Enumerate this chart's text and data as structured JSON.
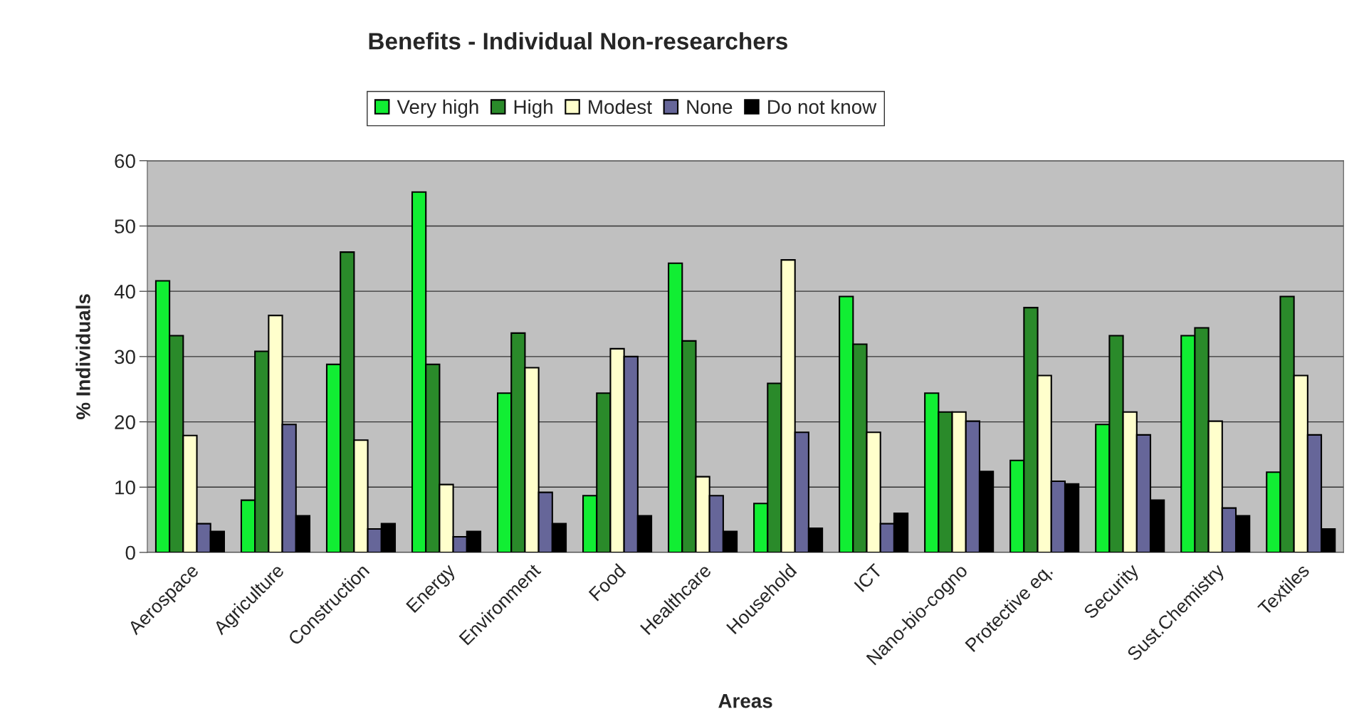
{
  "chart_data": {
    "type": "bar",
    "title": "Benefits - Individual Non-researchers",
    "xlabel": "Areas",
    "ylabel": "% Individuals",
    "categories": [
      "Aerospace",
      "Agriculture",
      "Construction",
      "Energy",
      "Environment",
      "Food",
      "Healthcare",
      "Household",
      "ICT",
      "Nano-bio-cogno",
      "Protective eq.",
      "Security",
      "Sust.Chemistry",
      "Textiles"
    ],
    "series": [
      {
        "name": "Very high",
        "color": "#11ee33",
        "values": [
          41.6,
          8.0,
          28.8,
          55.2,
          24.4,
          8.7,
          44.3,
          7.5,
          39.2,
          24.4,
          14.1,
          19.6,
          33.2,
          12.3
        ]
      },
      {
        "name": "High",
        "color": "#2a8a2a",
        "values": [
          33.2,
          30.8,
          46.0,
          28.8,
          33.6,
          24.4,
          32.4,
          25.9,
          31.9,
          21.5,
          37.5,
          33.2,
          34.4,
          39.2
        ]
      },
      {
        "name": "Modest",
        "color": "#ffffcc",
        "values": [
          17.9,
          36.3,
          17.2,
          10.4,
          28.3,
          31.2,
          11.6,
          44.8,
          18.4,
          21.5,
          27.1,
          21.5,
          20.1,
          27.1
        ]
      },
      {
        "name": "None",
        "color": "#666699",
        "values": [
          4.4,
          19.6,
          3.6,
          2.4,
          9.2,
          30.0,
          8.7,
          18.4,
          4.4,
          20.1,
          10.9,
          18.0,
          6.8,
          18.0
        ]
      },
      {
        "name": "Do not know",
        "color": "#000000",
        "values": [
          3.2,
          5.6,
          4.4,
          3.2,
          4.4,
          5.6,
          3.2,
          3.7,
          6.0,
          12.4,
          10.5,
          8.0,
          5.6,
          3.6
        ]
      }
    ],
    "ylim": [
      0,
      60
    ],
    "yticks": [
      0,
      10,
      20,
      30,
      40,
      50,
      60
    ],
    "grid": "y",
    "legend": "top"
  }
}
